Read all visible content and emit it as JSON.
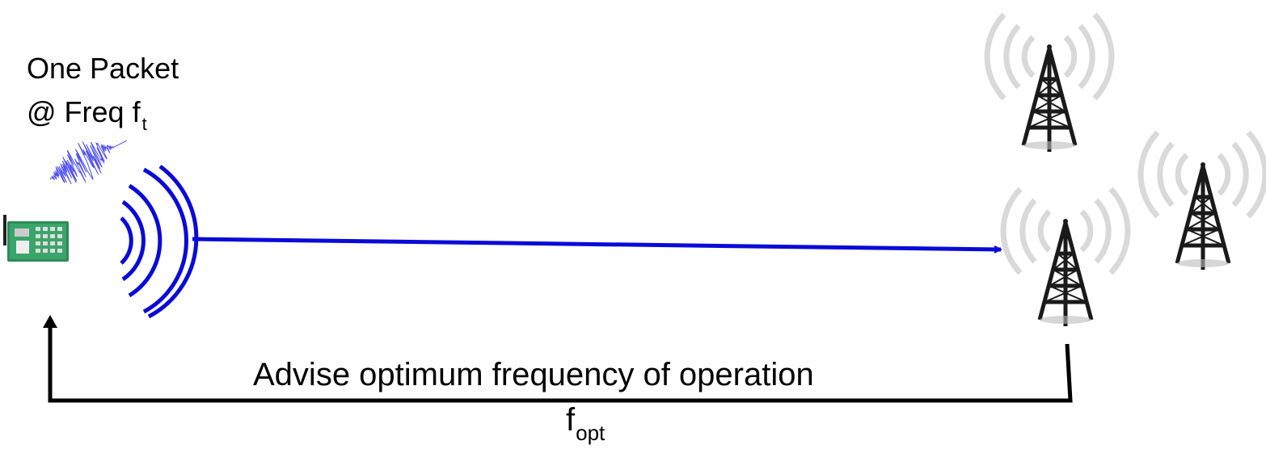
{
  "packet_label": {
    "line1": "One Packet",
    "line2_main": "@ Freq f",
    "line2_sub": "t"
  },
  "feedback_label": "Advise optimum frequency of operation",
  "fopt_label": {
    "main": "f",
    "sub": "opt"
  },
  "colors": {
    "signal": "#0a0ad8",
    "feedback": "#000000",
    "tower_waves": "#d9d9d9",
    "tower": "#1a1a1a"
  },
  "icons": [
    "iot-board-icon",
    "noise-signal-icon",
    "radio-waves-icon",
    "cell-tower-icon"
  ]
}
